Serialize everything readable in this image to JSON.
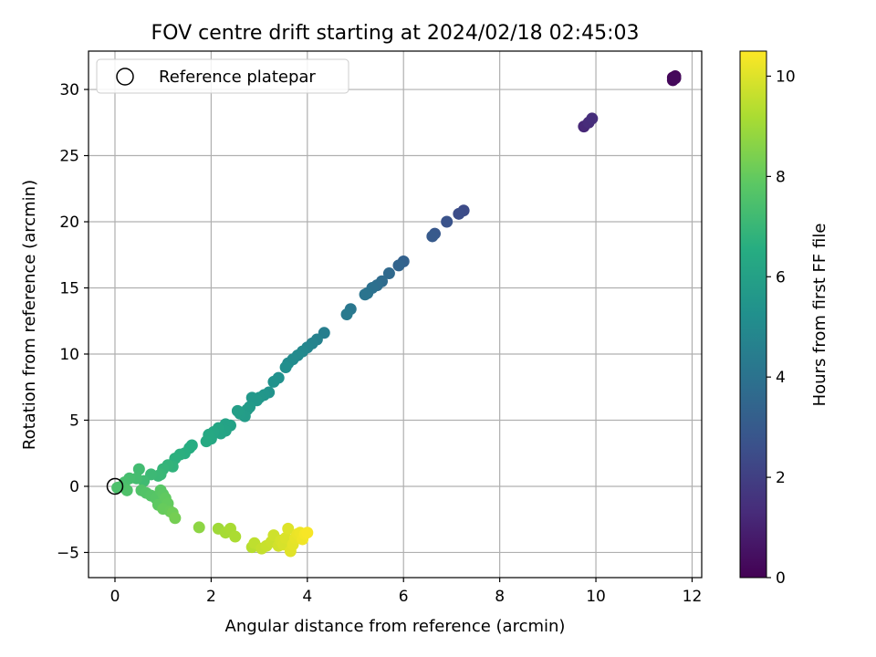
{
  "chart_data": {
    "type": "scatter",
    "title": "FOV centre drift starting at 2024/02/18 02:45:03",
    "xlabel": "Angular distance from reference (arcmin)",
    "ylabel": "Rotation from reference (arcmin)",
    "xlim": [
      -0.55,
      12.2
    ],
    "ylim": [
      -6.9,
      32.9
    ],
    "xticks": [
      0,
      2,
      4,
      6,
      8,
      10,
      12
    ],
    "yticks": [
      -5,
      0,
      5,
      10,
      15,
      20,
      25,
      30
    ],
    "grid": true,
    "legend": {
      "position": "top-left",
      "entries": [
        "Reference platepar"
      ]
    },
    "reference": {
      "x": 0,
      "y": 0
    },
    "colorbar": {
      "label": "Hours from first FF file",
      "range": [
        0,
        10.5
      ],
      "ticks": [
        0,
        2,
        4,
        6,
        8,
        10
      ],
      "colormap": "viridis"
    },
    "points": [
      [
        11.6,
        30.9,
        0.1
      ],
      [
        11.65,
        31.0,
        0.15
      ],
      [
        11.6,
        30.7,
        0.2
      ],
      [
        11.65,
        30.85,
        0.25
      ],
      [
        9.75,
        27.2,
        1.2
      ],
      [
        9.85,
        27.5,
        1.3
      ],
      [
        9.92,
        27.8,
        1.4
      ],
      [
        7.25,
        20.85,
        2.4
      ],
      [
        7.15,
        20.6,
        2.5
      ],
      [
        6.9,
        20.0,
        2.7
      ],
      [
        6.65,
        19.1,
        2.9
      ],
      [
        6.6,
        18.9,
        3.0
      ],
      [
        6.0,
        17.0,
        3.3
      ],
      [
        5.9,
        16.7,
        3.4
      ],
      [
        5.7,
        16.1,
        3.6
      ],
      [
        5.55,
        15.5,
        3.7
      ],
      [
        5.45,
        15.2,
        3.8
      ],
      [
        5.35,
        15.0,
        3.9
      ],
      [
        5.25,
        14.6,
        4.0
      ],
      [
        5.2,
        14.5,
        4.05
      ],
      [
        4.9,
        13.4,
        4.2
      ],
      [
        4.82,
        13.0,
        4.3
      ],
      [
        4.35,
        11.6,
        4.5
      ],
      [
        4.2,
        11.1,
        4.6
      ],
      [
        4.1,
        10.8,
        4.7
      ],
      [
        4.0,
        10.5,
        4.8
      ],
      [
        3.9,
        10.2,
        4.9
      ],
      [
        3.8,
        9.9,
        5.0
      ],
      [
        3.7,
        9.6,
        5.05
      ],
      [
        3.6,
        9.3,
        5.1
      ],
      [
        3.55,
        9.0,
        5.2
      ],
      [
        3.4,
        8.2,
        5.3
      ],
      [
        3.3,
        7.9,
        5.35
      ],
      [
        3.2,
        7.1,
        5.4
      ],
      [
        3.1,
        6.9,
        5.5
      ],
      [
        3.0,
        6.7,
        5.55
      ],
      [
        2.95,
        6.5,
        5.6
      ],
      [
        2.85,
        6.7,
        5.6
      ],
      [
        2.8,
        6.0,
        5.7
      ],
      [
        2.75,
        5.8,
        5.75
      ],
      [
        2.7,
        5.3,
        5.8
      ],
      [
        2.6,
        5.5,
        5.85
      ],
      [
        2.55,
        5.7,
        5.9
      ],
      [
        2.4,
        4.6,
        6.0
      ],
      [
        2.3,
        4.7,
        6.05
      ],
      [
        2.3,
        4.2,
        6.1
      ],
      [
        2.2,
        4.0,
        6.15
      ],
      [
        2.15,
        4.4,
        6.2
      ],
      [
        2.05,
        4.1,
        6.25
      ],
      [
        2.0,
        3.6,
        6.3
      ],
      [
        1.95,
        3.9,
        6.35
      ],
      [
        1.9,
        3.4,
        6.4
      ],
      [
        1.6,
        3.1,
        6.5
      ],
      [
        1.55,
        2.9,
        6.55
      ],
      [
        1.45,
        2.5,
        6.6
      ],
      [
        1.35,
        2.4,
        6.65
      ],
      [
        1.25,
        2.1,
        6.7
      ],
      [
        1.2,
        1.5,
        6.8
      ],
      [
        1.1,
        1.6,
        6.85
      ],
      [
        1.0,
        1.3,
        6.9
      ],
      [
        0.95,
        0.9,
        7.0
      ],
      [
        0.9,
        0.8,
        7.05
      ],
      [
        0.75,
        0.9,
        7.1
      ],
      [
        0.6,
        0.4,
        7.2
      ],
      [
        0.5,
        1.3,
        7.25
      ],
      [
        0.45,
        0.6,
        7.3
      ],
      [
        0.3,
        0.6,
        7.35
      ],
      [
        0.2,
        0.3,
        7.4
      ],
      [
        0.15,
        0.0,
        7.45
      ],
      [
        0.05,
        -0.1,
        7.5
      ],
      [
        0.25,
        -0.3,
        7.55
      ],
      [
        0.55,
        -0.3,
        7.6
      ],
      [
        0.65,
        -0.5,
        7.65
      ],
      [
        0.75,
        -0.7,
        7.7
      ],
      [
        0.85,
        -0.9,
        7.75
      ],
      [
        0.95,
        -0.3,
        7.8
      ],
      [
        1.0,
        -0.6,
        7.85
      ],
      [
        0.9,
        -1.4,
        7.9
      ],
      [
        1.05,
        -0.9,
        7.95
      ],
      [
        1.1,
        -1.3,
        8.0
      ],
      [
        1.0,
        -1.7,
        8.05
      ],
      [
        1.15,
        -1.9,
        8.1
      ],
      [
        1.2,
        -2.0,
        8.2
      ],
      [
        1.25,
        -2.4,
        8.3
      ],
      [
        1.75,
        -3.1,
        8.7
      ],
      [
        2.15,
        -3.2,
        9.0
      ],
      [
        2.3,
        -3.5,
        9.1
      ],
      [
        2.4,
        -3.2,
        9.15
      ],
      [
        2.5,
        -3.8,
        9.2
      ],
      [
        2.85,
        -4.6,
        9.4
      ],
      [
        2.9,
        -4.3,
        9.5
      ],
      [
        3.05,
        -4.7,
        9.6
      ],
      [
        3.15,
        -4.5,
        9.65
      ],
      [
        3.25,
        -4.2,
        9.7
      ],
      [
        3.3,
        -3.7,
        9.75
      ],
      [
        3.4,
        -4.5,
        9.8
      ],
      [
        3.45,
        -4.1,
        9.85
      ],
      [
        3.5,
        -4.4,
        9.9
      ],
      [
        3.55,
        -3.9,
        9.95
      ],
      [
        3.6,
        -3.2,
        10.0
      ],
      [
        3.65,
        -4.9,
        10.05
      ],
      [
        3.7,
        -4.4,
        10.1
      ],
      [
        3.75,
        -3.9,
        10.15
      ],
      [
        3.8,
        -3.6,
        10.2
      ],
      [
        3.85,
        -3.5,
        10.25
      ],
      [
        3.9,
        -4.0,
        10.3
      ],
      [
        3.95,
        -3.6,
        10.35
      ],
      [
        4.0,
        -3.5,
        10.4
      ]
    ]
  }
}
